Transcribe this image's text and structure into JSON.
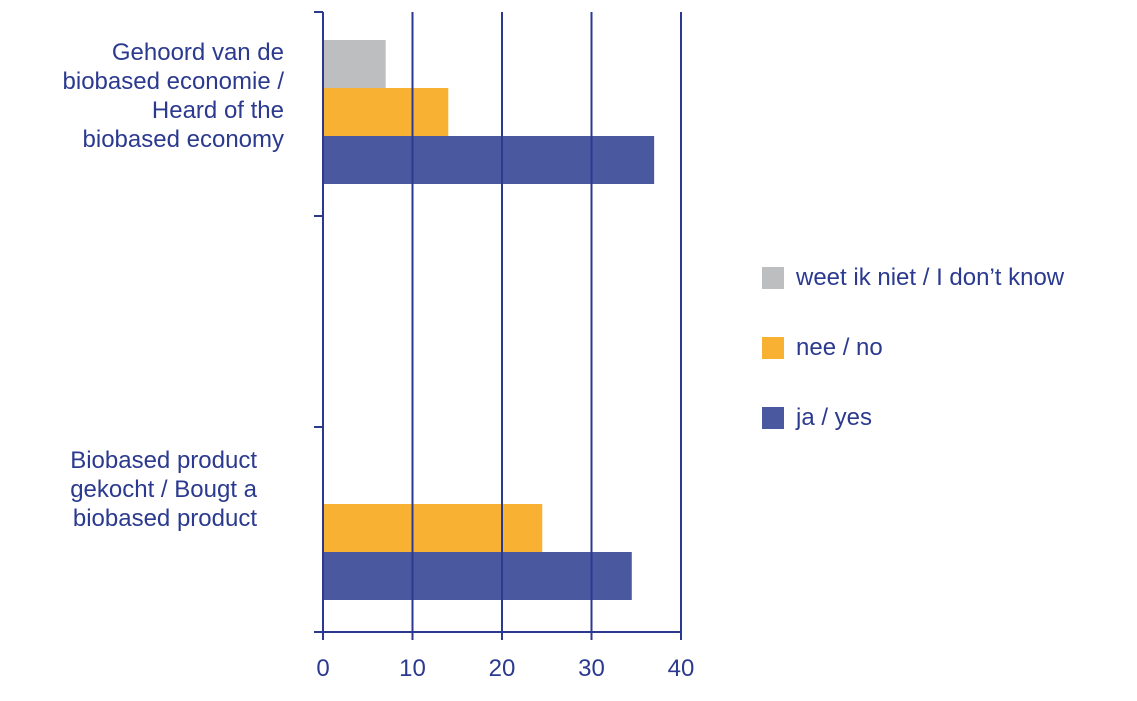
{
  "chart_data": {
    "type": "bar",
    "orientation": "horizontal",
    "categories": [
      "Gehoord van de\nbiobased economie /\nHeard of the\nbiobased economy",
      "Biobased product\ngekocht / Bougt a\nbiobased product"
    ],
    "series": [
      {
        "name": "weet ik niet / I don’t know",
        "color": "#bcbec0",
        "values": [
          7,
          0
        ]
      },
      {
        "name": "nee / no",
        "color": "#f8b133",
        "values": [
          14,
          24.5
        ]
      },
      {
        "name": "ja / yes",
        "color": "#4a58a0",
        "values": [
          37,
          34.5
        ]
      }
    ],
    "x_ticks": [
      "0",
      "10",
      "20",
      "30",
      "40"
    ],
    "xlim": [
      0,
      40
    ],
    "grid": "vertical",
    "legend_position": "right",
    "axis_color": "#2b3a8f"
  }
}
